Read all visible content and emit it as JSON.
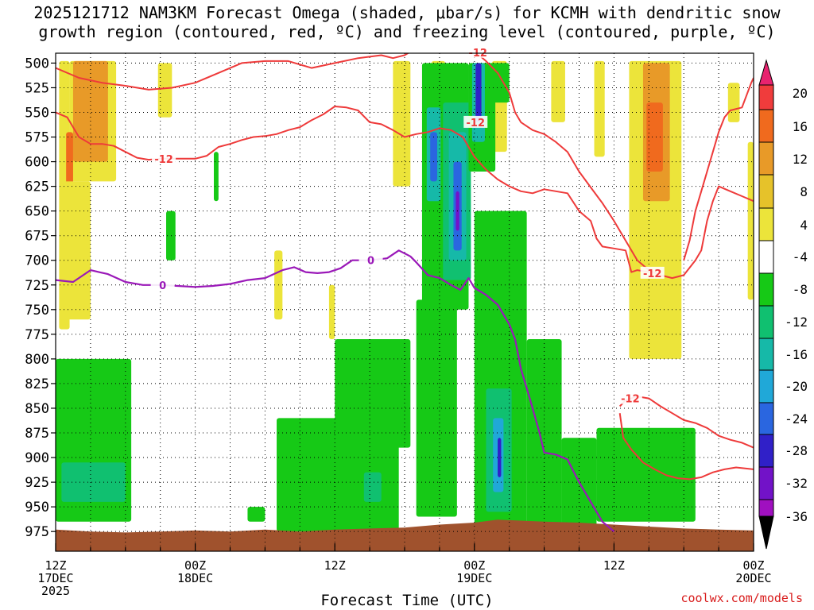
{
  "title_line1": "2025121712 NAM3KM Forecast Omega (shaded, μbar/s) for KCMH with dendritic snow",
  "title_line2": "growth region (contoured, red, ºC) and freezing level (contoured, purple, ºC)",
  "credit": "coolwx.com/models",
  "chart_data": {
    "type": "heatmap",
    "title": "2025121712 NAM3KM Forecast Omega (shaded, μbar/s) for KCMH with dendritic snow growth region (contoured, red, ºC) and freezing level (contoured, purple, ºC)",
    "xlabel": "Forecast Time (UTC)",
    "ylabel": "",
    "x_ticks": [
      {
        "hour": 0,
        "line1": "12Z",
        "line2": "17DEC",
        "line3": "2025"
      },
      {
        "hour": 12,
        "line1": "00Z",
        "line2": "18DEC",
        "line3": ""
      },
      {
        "hour": 24,
        "line1": "12Z",
        "line2": "",
        "line3": ""
      },
      {
        "hour": 36,
        "line1": "00Z",
        "line2": "19DEC",
        "line3": ""
      },
      {
        "hour": 48,
        "line1": "12Z",
        "line2": "",
        "line3": ""
      },
      {
        "hour": 60,
        "line1": "00Z",
        "line2": "20DEC",
        "line3": ""
      }
    ],
    "xlim": [
      0,
      60
    ],
    "y_levels": [
      500,
      525,
      550,
      575,
      600,
      625,
      650,
      675,
      700,
      725,
      750,
      775,
      800,
      825,
      850,
      875,
      900,
      925,
      950,
      975
    ],
    "ylim": [
      490,
      995
    ],
    "colorbar": {
      "labels": [
        "20",
        "16",
        "12",
        "8",
        "4",
        "-4",
        "-8",
        "-12",
        "-16",
        "-20",
        "-24",
        "-28",
        "-32",
        "-36"
      ],
      "colors": [
        "#e8236f",
        "#f03c3c",
        "#f06a1e",
        "#e89a28",
        "#e6c22a",
        "#ece43a",
        "#ffffff",
        "#16c916",
        "#10c070",
        "#16b9a8",
        "#20a8d8",
        "#2a66e0",
        "#3020c8",
        "#7212c8",
        "#a010c0",
        "#aaaaaa"
      ]
    },
    "contours": [
      {
        "label": "-12",
        "color": "#ee3a3a"
      },
      {
        "label": "0",
        "color": "#9a18b8"
      }
    ],
    "omega_cells": [
      {
        "t0": 0.3,
        "t1": 1.2,
        "p0": 498,
        "p1": 770,
        "v": 6
      },
      {
        "t0": 1.2,
        "t1": 5.2,
        "p0": 498,
        "p1": 620,
        "v": 6
      },
      {
        "t0": 1.5,
        "t1": 4.5,
        "p0": 498,
        "p1": 600,
        "v": 10
      },
      {
        "t0": 0.9,
        "t1": 1.5,
        "p0": 570,
        "p1": 625,
        "v": 14
      },
      {
        "t0": 0.5,
        "t1": 3,
        "p0": 620,
        "p1": 760,
        "v": 5
      },
      {
        "t0": 8.8,
        "t1": 10,
        "p0": 500,
        "p1": 555,
        "v": 5
      },
      {
        "t0": 18.8,
        "t1": 19.5,
        "p0": 690,
        "p1": 760,
        "v": 5
      },
      {
        "t0": 23.5,
        "t1": 24,
        "p0": 725,
        "p1": 780,
        "v": 5
      },
      {
        "t0": 29,
        "t1": 30.5,
        "p0": 498,
        "p1": 625,
        "v": 5
      },
      {
        "t0": 32.3,
        "t1": 33.5,
        "p0": 498,
        "p1": 580,
        "v": 5
      },
      {
        "t0": 37.5,
        "t1": 38.8,
        "p0": 498,
        "p1": 590,
        "v": 5
      },
      {
        "t0": 42.6,
        "t1": 43.8,
        "p0": 498,
        "p1": 560,
        "v": 5
      },
      {
        "t0": 46.3,
        "t1": 47.2,
        "p0": 498,
        "p1": 595,
        "v": 5
      },
      {
        "t0": 49.3,
        "t1": 53.8,
        "p0": 498,
        "p1": 800,
        "v": 6
      },
      {
        "t0": 50.5,
        "t1": 52.8,
        "p0": 500,
        "p1": 640,
        "v": 10
      },
      {
        "t0": 50.8,
        "t1": 52.2,
        "p0": 540,
        "p1": 610,
        "v": 13
      },
      {
        "t0": 57.8,
        "t1": 58.8,
        "p0": 520,
        "p1": 560,
        "v": 5
      },
      {
        "t0": 59.5,
        "t1": 60,
        "p0": 580,
        "p1": 740,
        "v": 5
      },
      {
        "t0": 0,
        "t1": 6.5,
        "p0": 800,
        "p1": 965,
        "v": -6
      },
      {
        "t0": 0.5,
        "t1": 6,
        "p0": 905,
        "p1": 945,
        "v": -10
      },
      {
        "t0": 9.5,
        "t1": 10.3,
        "p0": 650,
        "p1": 700,
        "v": -6
      },
      {
        "t0": 13.6,
        "t1": 14,
        "p0": 590,
        "p1": 640,
        "v": -6
      },
      {
        "t0": 19,
        "t1": 29.5,
        "p0": 860,
        "p1": 975,
        "v": -6
      },
      {
        "t0": 24,
        "t1": 30.5,
        "p0": 780,
        "p1": 890,
        "v": -6
      },
      {
        "t0": 26.5,
        "t1": 28,
        "p0": 915,
        "p1": 945,
        "v": -10
      },
      {
        "t0": 31,
        "t1": 34.5,
        "p0": 740,
        "p1": 960,
        "v": -6
      },
      {
        "t0": 31.5,
        "t1": 35.5,
        "p0": 500,
        "p1": 750,
        "v": -6
      },
      {
        "t0": 33.3,
        "t1": 35.7,
        "p0": 540,
        "p1": 720,
        "v": -10
      },
      {
        "t0": 33.8,
        "t1": 35.3,
        "p0": 570,
        "p1": 700,
        "v": -14
      },
      {
        "t0": 34.2,
        "t1": 34.9,
        "p0": 600,
        "p1": 690,
        "v": -22
      },
      {
        "t0": 34.4,
        "t1": 34.7,
        "p0": 630,
        "p1": 670,
        "v": -30
      },
      {
        "t0": 31.9,
        "t1": 33.1,
        "p0": 545,
        "p1": 640,
        "v": -14
      },
      {
        "t0": 32.2,
        "t1": 32.8,
        "p0": 570,
        "p1": 620,
        "v": -22
      },
      {
        "t0": 35.5,
        "t1": 37.8,
        "p0": 500,
        "p1": 610,
        "v": -6
      },
      {
        "t0": 35.8,
        "t1": 36.9,
        "p0": 500,
        "p1": 580,
        "v": -12
      },
      {
        "t0": 36.1,
        "t1": 36.6,
        "p0": 500,
        "p1": 560,
        "v": -24
      },
      {
        "t0": 37.5,
        "t1": 39,
        "p0": 500,
        "p1": 540,
        "v": -6
      },
      {
        "t0": 36,
        "t1": 40.5,
        "p0": 650,
        "p1": 975,
        "v": -6
      },
      {
        "t0": 37,
        "t1": 39.2,
        "p0": 830,
        "p1": 955,
        "v": -10
      },
      {
        "t0": 37.6,
        "t1": 38.5,
        "p0": 860,
        "p1": 935,
        "v": -18
      },
      {
        "t0": 38,
        "t1": 38.3,
        "p0": 880,
        "p1": 920,
        "v": -26
      },
      {
        "t0": 40.5,
        "t1": 43.5,
        "p0": 780,
        "p1": 975,
        "v": -6
      },
      {
        "t0": 43.5,
        "t1": 46.5,
        "p0": 880,
        "p1": 975,
        "v": -6
      },
      {
        "t0": 46.5,
        "t1": 55,
        "p0": 870,
        "p1": 965,
        "v": -6
      },
      {
        "t0": 16.5,
        "t1": 18,
        "p0": 950,
        "p1": 965,
        "v": -6
      }
    ],
    "freezing_level_0C": [
      [
        0,
        720
      ],
      [
        1.5,
        722
      ],
      [
        3,
        710
      ],
      [
        4.5,
        714
      ],
      [
        6,
        722
      ],
      [
        7.5,
        725
      ],
      [
        9,
        725
      ],
      [
        10.5,
        726
      ],
      [
        12,
        727
      ],
      [
        13.5,
        726
      ],
      [
        15,
        724
      ],
      [
        16.5,
        720
      ],
      [
        18,
        718
      ],
      [
        19.5,
        710
      ],
      [
        20.5,
        707
      ],
      [
        21.5,
        712
      ],
      [
        22.5,
        713
      ],
      [
        23.5,
        712
      ],
      [
        24.5,
        708
      ],
      [
        25,
        704
      ],
      [
        25.5,
        700
      ],
      [
        27,
        700
      ],
      [
        28.5,
        698
      ],
      [
        29.5,
        690
      ],
      [
        30.5,
        696
      ],
      [
        31,
        702
      ],
      [
        32,
        715
      ],
      [
        33,
        718
      ],
      [
        34,
        725
      ],
      [
        34.8,
        730
      ],
      [
        35.5,
        718
      ],
      [
        36,
        728
      ],
      [
        37,
        735
      ],
      [
        38,
        745
      ],
      [
        39,
        765
      ],
      [
        39.5,
        780
      ],
      [
        40,
        810
      ],
      [
        40.5,
        830
      ],
      [
        41,
        850
      ],
      [
        41.6,
        875
      ],
      [
        42,
        895
      ],
      [
        43,
        897
      ],
      [
        44,
        902
      ],
      [
        45,
        925
      ],
      [
        46,
        945
      ],
      [
        47,
        965
      ],
      [
        48,
        975
      ]
    ],
    "dgz_minus12C_upper": [
      [
        0,
        505
      ],
      [
        2,
        515
      ],
      [
        4,
        520
      ],
      [
        6,
        523
      ],
      [
        8,
        527
      ],
      [
        10,
        525
      ],
      [
        12,
        520
      ],
      [
        14,
        510
      ],
      [
        16,
        500
      ],
      [
        18,
        498
      ],
      [
        20,
        498
      ],
      [
        22,
        505
      ],
      [
        24,
        500
      ],
      [
        26,
        495
      ],
      [
        28,
        492
      ],
      [
        29,
        495
      ],
      [
        30,
        492
      ],
      [
        31,
        485
      ]
    ],
    "dgz_minus12C_mid": [
      [
        0,
        550
      ],
      [
        1,
        555
      ],
      [
        2,
        575
      ],
      [
        3,
        582
      ],
      [
        4,
        582
      ],
      [
        5,
        584
      ],
      [
        6,
        590
      ],
      [
        7,
        596
      ],
      [
        8,
        598
      ],
      [
        9,
        597
      ],
      [
        10,
        597
      ],
      [
        11,
        597
      ],
      [
        12,
        597
      ],
      [
        13,
        594
      ],
      [
        14,
        585
      ],
      [
        15,
        582
      ],
      [
        16,
        578
      ],
      [
        17,
        575
      ],
      [
        18,
        574
      ],
      [
        19,
        572
      ],
      [
        20,
        568
      ],
      [
        21,
        565
      ],
      [
        22,
        558
      ],
      [
        23,
        552
      ],
      [
        24,
        544
      ],
      [
        25,
        545
      ],
      [
        26,
        548
      ],
      [
        27,
        560
      ],
      [
        28,
        562
      ],
      [
        29,
        568
      ],
      [
        30,
        575
      ],
      [
        31,
        572
      ],
      [
        32,
        570
      ],
      [
        33,
        566
      ],
      [
        34,
        568
      ],
      [
        35,
        575
      ],
      [
        36,
        595
      ],
      [
        37,
        608
      ],
      [
        38,
        618
      ],
      [
        39,
        625
      ],
      [
        40,
        630
      ],
      [
        41,
        632
      ],
      [
        42,
        628
      ],
      [
        43,
        630
      ],
      [
        44,
        632
      ],
      [
        45,
        650
      ],
      [
        46,
        660
      ],
      [
        46.5,
        678
      ],
      [
        47,
        686
      ],
      [
        48,
        688
      ],
      [
        49,
        690
      ],
      [
        49.5,
        712
      ],
      [
        50,
        710
      ],
      [
        51,
        712
      ]
    ],
    "dgz_minus12C_right": [
      [
        36,
        488
      ],
      [
        37,
        498
      ],
      [
        38,
        510
      ],
      [
        39,
        530
      ],
      [
        39.5,
        550
      ],
      [
        40,
        560
      ],
      [
        41,
        568
      ],
      [
        42,
        572
      ],
      [
        43,
        580
      ],
      [
        44,
        590
      ],
      [
        45,
        610
      ],
      [
        46,
        626
      ],
      [
        47,
        642
      ],
      [
        48,
        660
      ],
      [
        49,
        680
      ],
      [
        50,
        700
      ],
      [
        51,
        710
      ],
      [
        52,
        715
      ],
      [
        53,
        718
      ],
      [
        54,
        715
      ],
      [
        55,
        700
      ],
      [
        55.5,
        690
      ],
      [
        56,
        660
      ],
      [
        56.5,
        640
      ],
      [
        57,
        625
      ],
      [
        58,
        630
      ],
      [
        59,
        635
      ],
      [
        60,
        640
      ]
    ],
    "dgz_minus12C_topright": [
      [
        54,
        700
      ],
      [
        54.5,
        680
      ],
      [
        55,
        650
      ],
      [
        55.5,
        630
      ],
      [
        56,
        610
      ],
      [
        56.5,
        590
      ],
      [
        57,
        570
      ],
      [
        57.5,
        555
      ],
      [
        58,
        548
      ],
      [
        59,
        545
      ],
      [
        59.8,
        520
      ],
      [
        60,
        515
      ]
    ],
    "dgz_minus12C_low": [
      [
        48.5,
        848
      ],
      [
        49,
        842
      ],
      [
        50,
        838
      ],
      [
        51,
        840
      ],
      [
        52,
        848
      ],
      [
        53,
        855
      ],
      [
        54,
        862
      ],
      [
        55,
        865
      ],
      [
        56,
        870
      ],
      [
        57,
        878
      ],
      [
        58,
        882
      ],
      [
        59,
        885
      ],
      [
        60,
        890
      ]
    ],
    "dgz_minus12C_low2": [
      [
        48.5,
        855
      ],
      [
        48.8,
        880
      ],
      [
        49.5,
        892
      ],
      [
        50.5,
        905
      ],
      [
        51.5,
        912
      ],
      [
        52.5,
        918
      ],
      [
        53.5,
        921
      ],
      [
        54.5,
        922
      ],
      [
        55.5,
        920
      ],
      [
        56.5,
        915
      ],
      [
        57.5,
        912
      ],
      [
        58.5,
        910
      ],
      [
        60,
        912
      ]
    ],
    "terrain_pressure": [
      [
        0,
        973
      ],
      [
        3,
        975
      ],
      [
        6,
        976
      ],
      [
        9,
        975
      ],
      [
        12,
        974
      ],
      [
        15,
        975
      ],
      [
        18,
        973
      ],
      [
        21,
        975
      ],
      [
        24,
        973
      ],
      [
        27,
        972
      ],
      [
        30,
        971
      ],
      [
        33,
        968
      ],
      [
        36,
        966
      ],
      [
        38,
        963
      ],
      [
        42,
        965
      ],
      [
        45,
        966
      ],
      [
        48,
        968
      ],
      [
        51,
        970
      ],
      [
        54,
        972
      ],
      [
        57,
        973
      ],
      [
        60,
        974
      ]
    ]
  }
}
